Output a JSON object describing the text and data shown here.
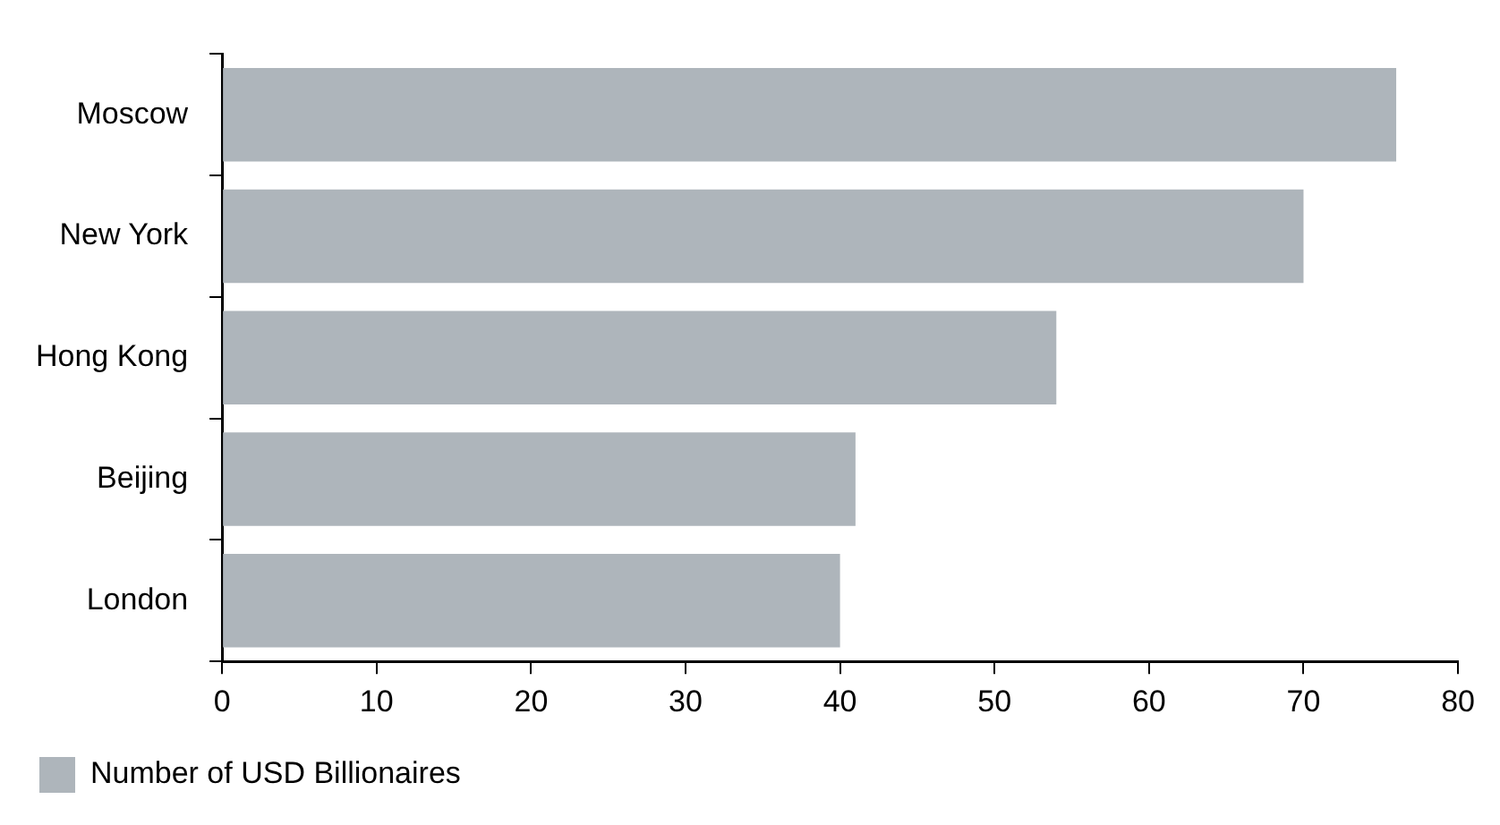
{
  "chart_data": {
    "type": "bar",
    "orientation": "horizontal",
    "categories": [
      "Moscow",
      "New York",
      "Hong Kong",
      "Beijing",
      "London"
    ],
    "series": [
      {
        "name": "Number of USD Billionaires",
        "color": "#aeb5bb",
        "values": [
          76,
          70,
          54,
          41,
          40
        ]
      }
    ],
    "xlim": [
      0,
      80
    ],
    "xticks": [
      0,
      10,
      20,
      30,
      40,
      50,
      60,
      70,
      80
    ],
    "grid": false,
    "legend": "bottom left"
  }
}
